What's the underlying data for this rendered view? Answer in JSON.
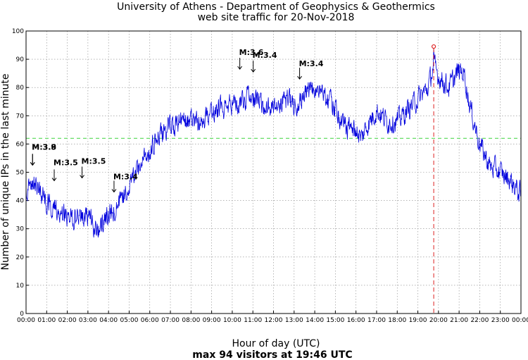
{
  "chart_data": {
    "type": "line",
    "title_line1": "University of Athens - Department of Geophysics & Geothermics",
    "title_line2": "web site traffic for 20-Nov-2018",
    "xlabel": "Hour of day (UTC)",
    "ylabel": "Number of unique IPs in the last minute",
    "footer": "max 94 visitors at 19:46 UTC",
    "xlim": [
      0,
      24
    ],
    "ylim": [
      0,
      100
    ],
    "yticks": [
      0,
      10,
      20,
      30,
      40,
      50,
      60,
      70,
      80,
      90,
      100
    ],
    "yticklabels": [
      "0",
      "10",
      "20",
      "30",
      "40",
      "50",
      "60",
      "70",
      "80",
      "90",
      "100"
    ],
    "xtick_hours": [
      0,
      1,
      2,
      3,
      4,
      5,
      6,
      7,
      8,
      9,
      10,
      11,
      12,
      13,
      14,
      15,
      16,
      17,
      18,
      19,
      20,
      21,
      22,
      23,
      24
    ],
    "xticklabels": [
      "00:00",
      "01:00",
      "02:00",
      "03:00",
      "04:00",
      "05:00",
      "06:00",
      "07:00",
      "08:00",
      "09:00",
      "10:00",
      "11:00",
      "12:00",
      "13:00",
      "14:00",
      "15:00",
      "16:00",
      "17:00",
      "18:00",
      "19:00",
      "20:00",
      "21:00",
      "22:00",
      "23:00",
      "00:00"
    ],
    "grid": true,
    "mean_line": {
      "y": 62,
      "color": "#66dd66"
    },
    "max_marker": {
      "hour": 19.77,
      "value": 94,
      "color": "#dd2222"
    },
    "series": [
      {
        "color": "#0000dd",
        "profile_hours": [
          0,
          0.25,
          0.5,
          0.75,
          1,
          1.5,
          2,
          2.5,
          3,
          3.25,
          3.5,
          4,
          4.5,
          5,
          5.5,
          6,
          6.5,
          7,
          7.5,
          8,
          8.5,
          9,
          9.5,
          10,
          10.5,
          11,
          11.5,
          12,
          12.5,
          13,
          13.5,
          14,
          14.5,
          15,
          15.5,
          16,
          16.25,
          16.5,
          17,
          17.5,
          18,
          18.5,
          19,
          19.5,
          19.77,
          20,
          20.5,
          21,
          21.25,
          21.5,
          22,
          22.5,
          23,
          23.5,
          24
        ],
        "profile_values": [
          44,
          47,
          45,
          42,
          39,
          37,
          34,
          34,
          35,
          31,
          30,
          35,
          38,
          45,
          52,
          58,
          63,
          66,
          68,
          68,
          67,
          72,
          73,
          74,
          75,
          76,
          74,
          73,
          76,
          74,
          77,
          80,
          78,
          72,
          66,
          65,
          62,
          66,
          72,
          68,
          68,
          72,
          76,
          80,
          88,
          84,
          80,
          86,
          85,
          74,
          60,
          52,
          50,
          47,
          42
        ],
        "noise_amplitude": 6
      }
    ],
    "annotations": [
      {
        "hour": 0.35,
        "label": "M:3.9",
        "arrow_top": 52.5,
        "arrow_bottom": 56.5,
        "label_y": 58
      },
      {
        "hour": 0.35,
        "label": "M:3.8",
        "arrow_top": 52.5,
        "arrow_bottom": 56.5,
        "label_y": 58
      },
      {
        "hour": 1.4,
        "label": "M:3.5",
        "arrow_top": 47,
        "arrow_bottom": 51,
        "label_y": 52.5
      },
      {
        "hour": 2.75,
        "label": "M:3.5",
        "arrow_top": 48,
        "arrow_bottom": 52,
        "label_y": 53
      },
      {
        "hour": 4.3,
        "label": "M:3.4",
        "arrow_top": 43,
        "arrow_bottom": 47,
        "label_y": 47.5
      },
      {
        "hour": 10.4,
        "label": "M:3.6",
        "arrow_top": 86.5,
        "arrow_bottom": 90.5,
        "label_y": 91.5
      },
      {
        "hour": 11.05,
        "label": "M:3.4",
        "arrow_top": 85.5,
        "arrow_bottom": 89.5,
        "label_y": 90.5
      },
      {
        "hour": 13.3,
        "label": "M:3.4",
        "arrow_top": 83,
        "arrow_bottom": 87,
        "label_y": 87.5
      }
    ]
  }
}
